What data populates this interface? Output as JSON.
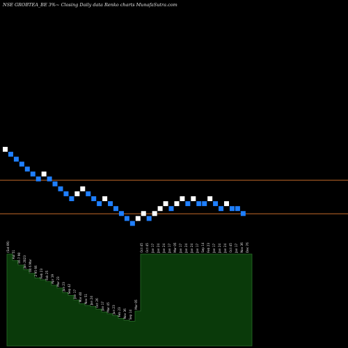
{
  "header": {
    "title": "NSE GROBTEA_BE 3%~  Closing Daily data  Renko  charts MunafaSutra.com"
  },
  "chart_data": {
    "type": "renko",
    "box_pct": 3,
    "bricks": [
      {
        "dir": "up"
      },
      {
        "dir": "down"
      },
      {
        "dir": "down"
      },
      {
        "dir": "down"
      },
      {
        "dir": "down"
      },
      {
        "dir": "down"
      },
      {
        "dir": "down"
      },
      {
        "dir": "up"
      },
      {
        "dir": "down"
      },
      {
        "dir": "down"
      },
      {
        "dir": "down"
      },
      {
        "dir": "down"
      },
      {
        "dir": "down"
      },
      {
        "dir": "up"
      },
      {
        "dir": "up"
      },
      {
        "dir": "down"
      },
      {
        "dir": "down"
      },
      {
        "dir": "down"
      },
      {
        "dir": "up"
      },
      {
        "dir": "down"
      },
      {
        "dir": "down"
      },
      {
        "dir": "down"
      },
      {
        "dir": "down"
      },
      {
        "dir": "down"
      },
      {
        "dir": "up"
      },
      {
        "dir": "up"
      },
      {
        "dir": "down"
      },
      {
        "dir": "up"
      },
      {
        "dir": "up"
      },
      {
        "dir": "up"
      },
      {
        "dir": "down"
      },
      {
        "dir": "up"
      },
      {
        "dir": "up"
      },
      {
        "dir": "down"
      },
      {
        "dir": "up"
      },
      {
        "dir": "down"
      },
      {
        "dir": "down"
      },
      {
        "dir": "up"
      },
      {
        "dir": "down"
      },
      {
        "dir": "down"
      },
      {
        "dir": "up"
      },
      {
        "dir": "down"
      },
      {
        "dir": "down"
      },
      {
        "dir": "down"
      }
    ],
    "brick_levels": [
      0,
      1,
      2,
      3,
      4,
      5,
      6,
      5,
      6,
      7,
      8,
      9,
      10,
      9,
      8,
      9,
      10,
      11,
      10,
      11,
      12,
      13,
      14,
      15,
      14,
      13,
      14,
      13,
      12,
      11,
      12,
      11,
      10,
      11,
      10,
      11,
      11,
      10,
      11,
      12,
      11,
      12,
      12,
      13
    ],
    "reference_levels": [
      3.3,
      6.6
    ],
    "price_labels": [
      "(Sat 06)",
      "Aul 51",
      "10.7 90",
      "Jan 2023",
      "04 6 Mar",
      "2 95 66",
      "Feb 23",
      "Fab 25",
      "Apr 19",
      "Mar 23",
      "Jun 23",
      "Sep 42",
      "Jan 17",
      "Mar 40",
      "Nov 51",
      "Jan 24",
      "Oct 26",
      "Jan 17",
      "Mar 45",
      "Jun 23",
      "Feb 23",
      "Nov 36",
      "Sep 14",
      "Mar 05",
      "Oct 45",
      "Oct 45",
      "Jan 17",
      "Jan 24",
      "Jan 24",
      "Jan 17",
      "Mar 05",
      "Jan 17",
      "Jan 24",
      "Jan 24",
      "Jan 17",
      "Sep 14",
      "Feb 23",
      "Jan 17",
      "Jan 24",
      "Jan 24",
      "Oct 45",
      "Jan 17",
      "Nov 36",
      "Dec 76"
    ],
    "price_levels": [
      1,
      0.93,
      0.88,
      0.83,
      0.79,
      0.74,
      0.72,
      0.7,
      0.66,
      0.63,
      0.58,
      0.55,
      0.5,
      0.46,
      0.44,
      0.43,
      0.4,
      0.37,
      0.35,
      0.33,
      0.3,
      0.28,
      0.27,
      0.38,
      1,
      1,
      1,
      1,
      1,
      1,
      1,
      1,
      1,
      1,
      1,
      1,
      1,
      1,
      1,
      1,
      1,
      1,
      1,
      1
    ],
    "colors": {
      "up": "#ffffff",
      "down": "#1f7fff",
      "reference_line": "#c86c2a",
      "volume": "#0a3a0a",
      "volume_edge": "#2a6f2a",
      "text": "#e6e6e6"
    }
  }
}
